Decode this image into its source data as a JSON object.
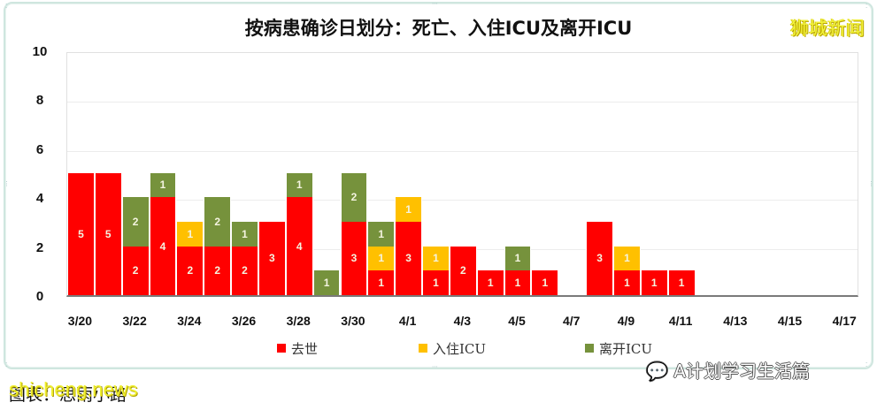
{
  "title": "按病患确诊日划分：死亡、入住ICU及离开ICU",
  "watermark_top": "狮城新闻",
  "footer": {
    "caption": "图表：思雨小路",
    "watermark": "shicheng.news",
    "wechat_source": "A计划学习生活篇"
  },
  "colors": {
    "death": "#ff0000",
    "icu_in": "#ffc000",
    "icu_out": "#76923c"
  },
  "chart_data": {
    "type": "bar",
    "stacked": true,
    "title": "按病患确诊日划分：死亡、入住ICU及离开ICU",
    "xlabel": "",
    "ylabel": "",
    "ylim": [
      0,
      10
    ],
    "yticks": [
      "0",
      "2",
      "4",
      "6",
      "8",
      "10"
    ],
    "grid": true,
    "legend_position": "bottom",
    "x_tick_labels": [
      "3/20",
      "3/22",
      "3/24",
      "3/26",
      "3/28",
      "3/30",
      "4/1",
      "4/3",
      "4/5",
      "4/7",
      "4/9",
      "4/11",
      "4/13",
      "4/15",
      "4/17"
    ],
    "categories": [
      "3/20",
      "3/21",
      "3/22",
      "3/23",
      "3/24",
      "3/25",
      "3/26",
      "3/27",
      "3/28",
      "3/29",
      "3/30",
      "3/31",
      "4/1",
      "4/2",
      "4/3",
      "4/4",
      "4/5",
      "4/6",
      "4/7",
      "4/8",
      "4/9",
      "4/10",
      "4/11",
      "4/12",
      "4/13",
      "4/14",
      "4/15",
      "4/16",
      "4/17"
    ],
    "series": [
      {
        "name": "去世",
        "color": "#ff0000",
        "values": [
          5,
          5,
          2,
          4,
          2,
          2,
          2,
          3,
          4,
          0,
          3,
          1,
          3,
          1,
          2,
          1,
          1,
          1,
          0,
          3,
          1,
          1,
          1,
          0,
          0,
          0,
          0,
          0,
          0
        ]
      },
      {
        "name": "入住ICU",
        "color": "#ffc000",
        "values": [
          0,
          0,
          0,
          0,
          1,
          0,
          0,
          0,
          0,
          0,
          0,
          1,
          1,
          1,
          0,
          0,
          0,
          0,
          0,
          0,
          1,
          0,
          0,
          0,
          0,
          0,
          0,
          0,
          0
        ]
      },
      {
        "name": "离开ICU",
        "color": "#76923c",
        "values": [
          0,
          0,
          2,
          1,
          0,
          2,
          1,
          0,
          1,
          1,
          2,
          1,
          0,
          0,
          0,
          0,
          1,
          0,
          0,
          0,
          0,
          0,
          0,
          0,
          0,
          0,
          0,
          0,
          0
        ]
      }
    ]
  }
}
